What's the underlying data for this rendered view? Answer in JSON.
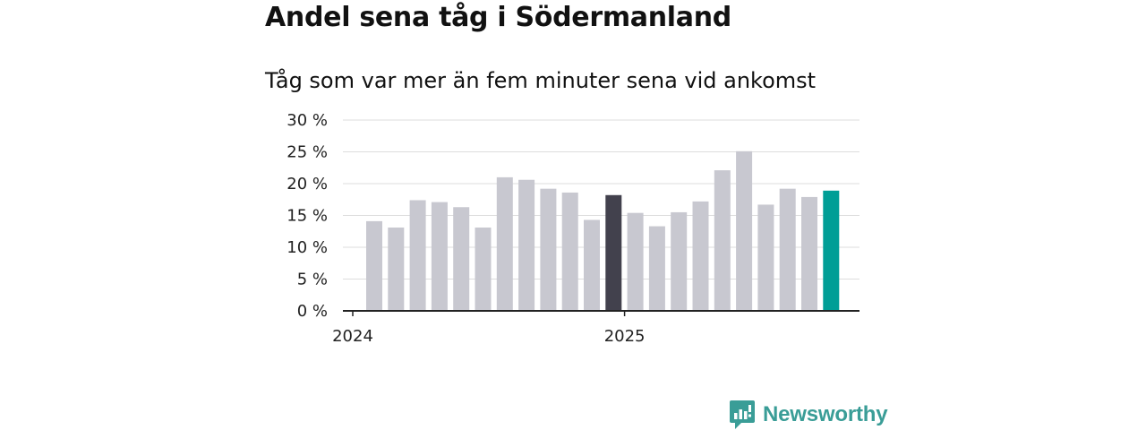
{
  "title": "Andel sena tåg i Södermanland",
  "subtitle": "Tåg som var mer än fem minuter sena vid ankomst",
  "brand": {
    "name": "Newsworthy",
    "color": "#3a9d97",
    "icon": "bar-chart-badge-icon"
  },
  "chart_data": {
    "type": "bar",
    "title": "Andel sena tåg i Södermanland",
    "subtitle": "Tåg som var mer än fem minuter sena vid ankomst",
    "xlabel": "",
    "ylabel": "",
    "ylim": [
      0,
      30
    ],
    "yticks": [
      0,
      5,
      10,
      15,
      20,
      25,
      30
    ],
    "ytick_labels": [
      "0 %",
      "5 %",
      "10 %",
      "15 %",
      "20 %",
      "25 %",
      "30 %"
    ],
    "xtick_labels": [
      "2024",
      "2025"
    ],
    "grid": true,
    "legend": "none",
    "colors": {
      "default": "#c8c8d0",
      "highlight_dark": "#42414d",
      "highlight_current": "#009e96",
      "grid": "#dddddd",
      "axis": "#222222"
    },
    "categories": [
      "2024-01",
      "2024-02",
      "2024-03",
      "2024-04",
      "2024-05",
      "2024-06",
      "2024-07",
      "2024-08",
      "2024-09",
      "2024-10",
      "2024-11",
      "2024-12",
      "2025-01",
      "2025-02",
      "2025-03",
      "2025-04",
      "2025-05",
      "2025-06",
      "2025-07",
      "2025-08",
      "2025-09",
      "2025-10"
    ],
    "values": [
      14.1,
      13.1,
      17.4,
      17.1,
      16.3,
      13.1,
      21.0,
      20.6,
      19.2,
      18.6,
      14.3,
      18.2,
      15.4,
      13.3,
      15.5,
      17.2,
      22.1,
      25.1,
      16.7,
      19.2,
      17.9,
      18.9
    ],
    "highlights": {
      "2024-12": "highlight_dark",
      "2025-10": "highlight_current"
    }
  }
}
